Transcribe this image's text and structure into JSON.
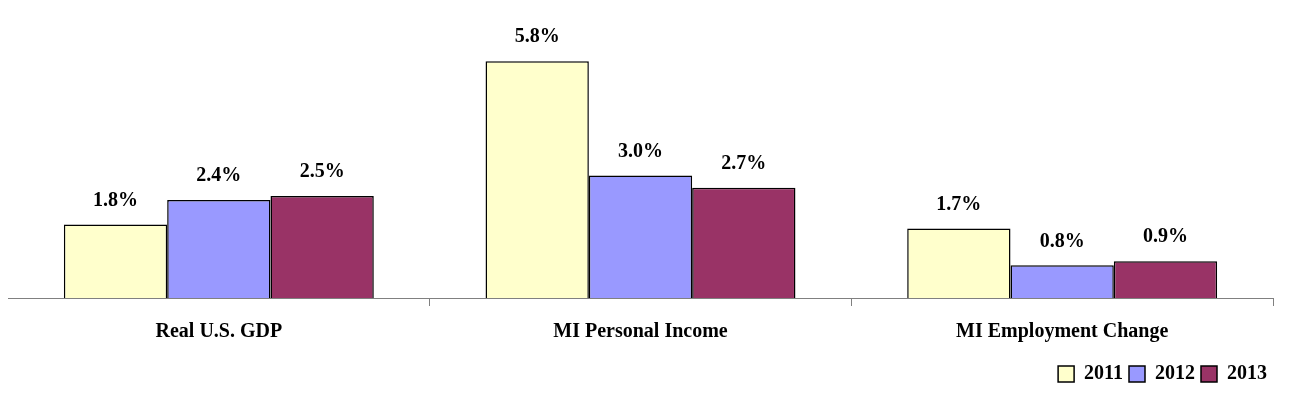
{
  "chart_data": {
    "type": "bar",
    "categories": [
      "Real U.S. GDP",
      "MI Personal Income",
      "MI Employment Change"
    ],
    "series": [
      {
        "name": "2011",
        "color": "#ffffcc",
        "values": [
          1.8,
          5.8,
          1.7
        ],
        "value_labels": [
          "1.8%",
          "5.8%",
          "1.7%"
        ]
      },
      {
        "name": "2012",
        "color": "#9999ff",
        "values": [
          2.4,
          3.0,
          0.8
        ],
        "value_labels": [
          "2.4%",
          "3.0%",
          "0.8%"
        ]
      },
      {
        "name": "2013",
        "color": "#993366",
        "values": [
          2.5,
          2.7,
          0.9
        ],
        "value_labels": [
          "2.5%",
          "2.7%",
          "0.9%"
        ]
      }
    ],
    "legend": "bottom right",
    "grid": false
  }
}
